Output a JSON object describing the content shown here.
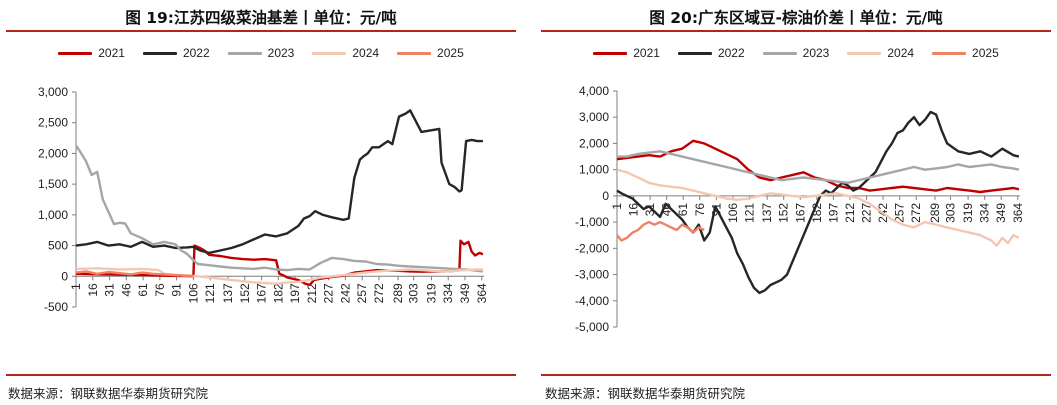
{
  "footer": {
    "left_source": "数据来源：钢联数据华泰期货研究院",
    "right_source": "数据来源：钢联数据华泰期货研究院"
  },
  "chart_data": [
    {
      "type": "line",
      "title": "图 19:江苏四级菜油基差丨单位：元/吨",
      "xlabel": "",
      "ylabel": "",
      "ylim": [
        -500,
        3000
      ],
      "yticks": [
        "3,000",
        "2,500",
        "2,000",
        "1,500",
        "1,000",
        "500",
        "0",
        "-500"
      ],
      "ytick_values": [
        3000,
        2500,
        2000,
        1500,
        1000,
        500,
        0,
        -500
      ],
      "xlim": [
        1,
        366
      ],
      "x_ticks": [
        1,
        16,
        31,
        46,
        61,
        76,
        91,
        106,
        121,
        137,
        152,
        167,
        182,
        197,
        212,
        227,
        242,
        257,
        272,
        289,
        303,
        319,
        334,
        349,
        364
      ],
      "x_tick_labels": [
        "1",
        "16",
        "31",
        "46",
        "61",
        "76",
        "91",
        "106",
        "121",
        "137",
        "152",
        "167",
        "182",
        "197",
        "212",
        "227",
        "242",
        "257",
        "272",
        "289",
        "303",
        "319",
        "334",
        "349",
        "364"
      ],
      "legend_position": "top-center",
      "series": [
        {
          "name": "2021",
          "color": "#c00000",
          "x": [
            1,
            30,
            60,
            80,
            100,
            106,
            107,
            112,
            116,
            120,
            130,
            140,
            150,
            160,
            170,
            180,
            183,
            186,
            190,
            200,
            206,
            210,
            214,
            220,
            230,
            240,
            250,
            260,
            270,
            280,
            290,
            300,
            310,
            320,
            330,
            340,
            344,
            345,
            348,
            352,
            355,
            358,
            362,
            365
          ],
          "y": [
            40,
            30,
            20,
            10,
            5,
            0,
            500,
            460,
            420,
            350,
            330,
            300,
            280,
            270,
            280,
            260,
            40,
            20,
            -20,
            -60,
            -120,
            -140,
            -60,
            -40,
            -10,
            10,
            60,
            80,
            100,
            90,
            90,
            80,
            75,
            80,
            80,
            90,
            100,
            580,
            520,
            560,
            400,
            340,
            380,
            360
          ]
        },
        {
          "name": "2022",
          "color": "#262626",
          "x": [
            1,
            10,
            20,
            30,
            40,
            50,
            60,
            70,
            80,
            90,
            100,
            106,
            112,
            120,
            130,
            140,
            150,
            160,
            170,
            180,
            190,
            200,
            205,
            210,
            215,
            222,
            230,
            240,
            245,
            250,
            255,
            258,
            262,
            266,
            272,
            280,
            284,
            290,
            296,
            300,
            310,
            320,
            326,
            328,
            335,
            340,
            344,
            346,
            350,
            355,
            360,
            365
          ],
          "y": [
            500,
            520,
            560,
            500,
            520,
            480,
            560,
            480,
            500,
            460,
            470,
            480,
            420,
            380,
            420,
            460,
            520,
            600,
            680,
            650,
            700,
            820,
            940,
            980,
            1060,
            1000,
            960,
            920,
            940,
            1600,
            1900,
            1950,
            2000,
            2100,
            2100,
            2200,
            2150,
            2600,
            2650,
            2700,
            2350,
            2380,
            2400,
            1850,
            1500,
            1450,
            1380,
            1400,
            2200,
            2220,
            2200,
            2200
          ]
        },
        {
          "name": "2023",
          "color": "#a6a6a6",
          "x": [
            1,
            5,
            10,
            15,
            20,
            25,
            30,
            35,
            40,
            45,
            50,
            60,
            70,
            80,
            90,
            95,
            100,
            105,
            110,
            120,
            130,
            140,
            150,
            160,
            170,
            180,
            190,
            200,
            210,
            220,
            230,
            240,
            250,
            260,
            270,
            280,
            290,
            300,
            310,
            320,
            330,
            340,
            350,
            360,
            365
          ],
          "y": [
            2130,
            2020,
            1870,
            1650,
            1700,
            1250,
            1050,
            850,
            870,
            860,
            700,
            620,
            520,
            560,
            520,
            420,
            370,
            280,
            200,
            180,
            160,
            140,
            130,
            120,
            140,
            110,
            100,
            120,
            110,
            220,
            300,
            280,
            250,
            240,
            200,
            190,
            170,
            160,
            150,
            140,
            130,
            120,
            110,
            90,
            80
          ]
        },
        {
          "name": "2024",
          "color": "#f4c7b3",
          "x": [
            1,
            20,
            40,
            60,
            75,
            80,
            90,
            100,
            110,
            120,
            130,
            140,
            150,
            160,
            170,
            180,
            190,
            200,
            210,
            220,
            230,
            240,
            250,
            260,
            270,
            280,
            290,
            300,
            310,
            320,
            330,
            340,
            350,
            360,
            365
          ],
          "y": [
            120,
            130,
            110,
            120,
            100,
            40,
            20,
            10,
            0,
            -20,
            -40,
            -60,
            -80,
            -100,
            -110,
            -120,
            -100,
            -90,
            -60,
            -20,
            0,
            20,
            40,
            60,
            80,
            90,
            100,
            110,
            100,
            90,
            80,
            90,
            100,
            110,
            110
          ]
        },
        {
          "name": "2025",
          "color": "#f08263",
          "x": [
            1,
            10,
            20,
            30,
            40,
            50,
            60,
            70,
            80,
            90,
            100,
            106
          ],
          "y": [
            60,
            80,
            40,
            70,
            50,
            30,
            60,
            40,
            30,
            20,
            10,
            5
          ]
        }
      ]
    },
    {
      "type": "line",
      "title": "图 20:广东区域豆-棕油价差丨单位：元/吨",
      "xlabel": "",
      "ylabel": "",
      "ylim": [
        -5000,
        4000
      ],
      "yticks": [
        "4,000",
        "3,000",
        "2,000",
        "1,000",
        "0",
        "-1,000",
        "-2,000",
        "-3,000",
        "-4,000",
        "-5,000"
      ],
      "ytick_values": [
        4000,
        3000,
        2000,
        1000,
        0,
        -1000,
        -2000,
        -3000,
        -4000,
        -5000
      ],
      "xlim": [
        1,
        366
      ],
      "x_ticks": [
        1,
        16,
        31,
        46,
        61,
        76,
        91,
        106,
        121,
        137,
        152,
        167,
        182,
        197,
        212,
        227,
        242,
        257,
        272,
        289,
        303,
        319,
        334,
        349,
        364
      ],
      "x_tick_labels": [
        "1",
        "16",
        "31",
        "46",
        "61",
        "76",
        "91",
        "106",
        "121",
        "137",
        "152",
        "167",
        "182",
        "197",
        "212",
        "227",
        "242",
        "257",
        "272",
        "289",
        "303",
        "319",
        "334",
        "349",
        "364"
      ],
      "legend_position": "top-center",
      "series": [
        {
          "name": "2021",
          "color": "#c00000",
          "x": [
            1,
            10,
            20,
            30,
            40,
            50,
            60,
            70,
            80,
            90,
            100,
            110,
            120,
            130,
            140,
            150,
            160,
            170,
            180,
            190,
            200,
            210,
            220,
            230,
            240,
            250,
            260,
            270,
            280,
            290,
            300,
            310,
            320,
            330,
            340,
            350,
            360,
            365
          ],
          "y": [
            1400,
            1450,
            1500,
            1550,
            1500,
            1700,
            1800,
            2100,
            2000,
            1800,
            1600,
            1400,
            1000,
            700,
            600,
            700,
            800,
            900,
            700,
            600,
            400,
            300,
            300,
            200,
            250,
            300,
            350,
            300,
            250,
            200,
            300,
            250,
            200,
            150,
            200,
            250,
            300,
            250
          ]
        },
        {
          "name": "2022",
          "color": "#262626",
          "x": [
            1,
            5,
            10,
            15,
            20,
            25,
            30,
            35,
            40,
            45,
            50,
            55,
            60,
            65,
            70,
            75,
            80,
            85,
            90,
            95,
            100,
            105,
            110,
            115,
            120,
            125,
            130,
            135,
            140,
            145,
            150,
            155,
            160,
            165,
            170,
            175,
            180,
            185,
            190,
            195,
            200,
            205,
            210,
            215,
            220,
            225,
            230,
            235,
            240,
            245,
            250,
            255,
            260,
            265,
            270,
            275,
            280,
            285,
            290,
            295,
            300,
            310,
            320,
            330,
            340,
            350,
            360,
            365
          ],
          "y": [
            200,
            100,
            0,
            -100,
            -300,
            -500,
            -400,
            -600,
            -800,
            -300,
            -500,
            -700,
            -900,
            -1200,
            -1400,
            -1100,
            -1700,
            -1400,
            -400,
            -800,
            -1200,
            -1600,
            -2200,
            -2600,
            -3100,
            -3500,
            -3700,
            -3600,
            -3400,
            -3300,
            -3200,
            -3000,
            -2500,
            -2000,
            -1500,
            -1000,
            -500,
            0,
            200,
            100,
            300,
            500,
            400,
            200,
            300,
            500,
            700,
            900,
            1300,
            1700,
            2000,
            2400,
            2500,
            2800,
            3000,
            2700,
            2900,
            3200,
            3100,
            2500,
            2000,
            1700,
            1600,
            1700,
            1500,
            1800,
            1550,
            1500
          ]
        },
        {
          "name": "2023",
          "color": "#a6a6a6",
          "x": [
            1,
            10,
            20,
            30,
            40,
            50,
            60,
            70,
            80,
            90,
            100,
            110,
            120,
            130,
            140,
            150,
            160,
            170,
            180,
            190,
            200,
            210,
            220,
            230,
            240,
            250,
            260,
            270,
            280,
            290,
            300,
            310,
            320,
            330,
            340,
            350,
            360,
            365
          ],
          "y": [
            1500,
            1500,
            1600,
            1650,
            1700,
            1600,
            1500,
            1400,
            1300,
            1200,
            1100,
            1000,
            900,
            800,
            700,
            600,
            650,
            700,
            650,
            600,
            550,
            500,
            600,
            700,
            800,
            900,
            1000,
            1100,
            1000,
            1050,
            1100,
            1200,
            1100,
            1150,
            1200,
            1100,
            1050,
            1000
          ]
        },
        {
          "name": "2024",
          "color": "#f4c7b3",
          "x": [
            1,
            10,
            20,
            30,
            40,
            50,
            60,
            70,
            80,
            90,
            100,
            110,
            120,
            130,
            140,
            150,
            160,
            170,
            180,
            190,
            200,
            210,
            220,
            230,
            240,
            250,
            260,
            270,
            280,
            290,
            300,
            310,
            320,
            330,
            340,
            345,
            350,
            355,
            360,
            365
          ],
          "y": [
            1000,
            900,
            700,
            500,
            400,
            350,
            300,
            200,
            100,
            0,
            -100,
            -150,
            -100,
            0,
            100,
            50,
            0,
            -50,
            0,
            50,
            100,
            0,
            -100,
            -300,
            -600,
            -900,
            -1100,
            -1200,
            -1000,
            -1100,
            -1200,
            -1300,
            -1400,
            -1500,
            -1700,
            -1900,
            -1600,
            -1800,
            -1500,
            -1600
          ]
        },
        {
          "name": "2025",
          "color": "#f08263",
          "x": [
            1,
            5,
            10,
            15,
            20,
            25,
            30,
            35,
            40,
            45,
            50,
            55,
            60,
            65,
            70,
            75,
            80
          ],
          "y": [
            -1500,
            -1700,
            -1600,
            -1400,
            -1300,
            -1100,
            -1000,
            -1100,
            -1000,
            -1100,
            -1200,
            -1300,
            -1100,
            -1200,
            -1400,
            -1200,
            -1300
          ]
        }
      ]
    }
  ]
}
